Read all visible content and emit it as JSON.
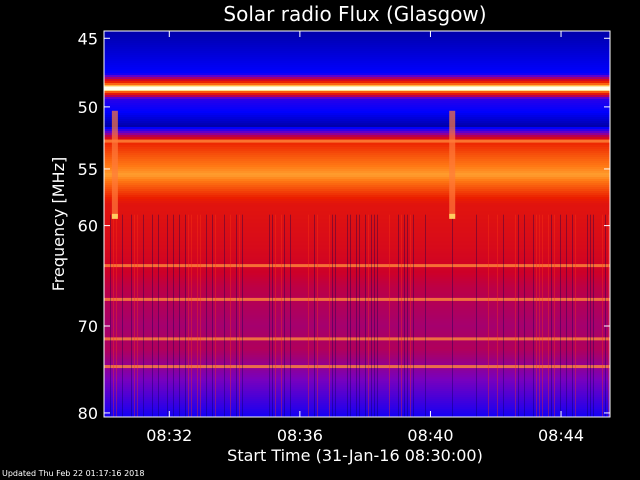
{
  "chart_data": {
    "type": "heatmap",
    "title": "Solar radio Flux (Glasgow)",
    "xlabel": "Start Time (31-Jan-16 08:30:00)",
    "ylabel": "Frequency [MHz]",
    "x_unit": "time",
    "x_range": [
      "08:30:00",
      "08:45:30"
    ],
    "x_ticks": [
      "08:32",
      "08:36",
      "08:40",
      "08:44"
    ],
    "ylim": [
      44.5,
      80.5
    ],
    "y_ticks": [
      45,
      50,
      55,
      60,
      70,
      80
    ],
    "y_scale": "log",
    "colormap": "blue-red-yellow-white",
    "intensity_profile": [
      {
        "mhz": 44.5,
        "level": 0.05
      },
      {
        "mhz": 47.5,
        "level": 0.12
      },
      {
        "mhz": 48.6,
        "level": 0.97
      },
      {
        "mhz": 49.4,
        "level": 0.18
      },
      {
        "mhz": 51.5,
        "level": 0.05
      },
      {
        "mhz": 52.7,
        "level": 0.6
      },
      {
        "mhz": 54.0,
        "level": 0.7
      },
      {
        "mhz": 55.5,
        "level": 0.8
      },
      {
        "mhz": 58.0,
        "level": 0.55
      },
      {
        "mhz": 62.0,
        "level": 0.5
      },
      {
        "mhz": 66.0,
        "level": 0.42
      },
      {
        "mhz": 70.0,
        "level": 0.38
      },
      {
        "mhz": 72.5,
        "level": 0.4
      },
      {
        "mhz": 76.0,
        "level": 0.3
      },
      {
        "mhz": 80.5,
        "level": 0.15
      }
    ],
    "bright_lines_mhz": [
      48.6,
      52.7,
      63.8,
      67.2,
      71.4,
      74.5
    ],
    "events": [
      {
        "time": "08:30:20",
        "mhz_from": 50.3,
        "mhz_to": 59.2
      },
      {
        "time": "08:40:40",
        "mhz_from": 50.3,
        "mhz_to": 59.2
      }
    ],
    "colors": {
      "background": "#000000",
      "text": "#ffffff"
    }
  },
  "footer": "Updated Thu Feb 22 01:17:16 2018"
}
